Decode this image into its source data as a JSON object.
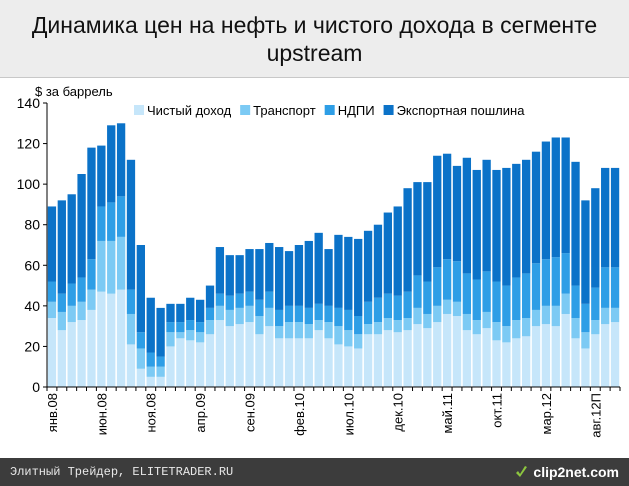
{
  "header": {
    "title": "Динамика цен на нефть и чистого дохода в сегменте upstream"
  },
  "footer": {
    "caption": "Элитный Трейдер, ELITETRADER.RU",
    "brand": "clip2net.com"
  },
  "colors": {
    "net_income": "#c6e6fa",
    "transport": "#7ccaf4",
    "mineral_tax": "#2e9ee6",
    "export_duty": "#0b72c8"
  },
  "chart_data": {
    "type": "bar",
    "stacked": true,
    "ylabel": "$ за баррель",
    "ylim": [
      0,
      140
    ],
    "yticks": [
      0,
      20,
      40,
      60,
      80,
      100,
      120,
      140
    ],
    "grid": false,
    "legend_position": "top",
    "tick_labels": [
      {
        "index": 0,
        "label": "янв.08"
      },
      {
        "index": 5,
        "label": "июн.08"
      },
      {
        "index": 10,
        "label": "ноя.08"
      },
      {
        "index": 15,
        "label": "апр.09"
      },
      {
        "index": 20,
        "label": "сен.09"
      },
      {
        "index": 25,
        "label": "фев.10"
      },
      {
        "index": 30,
        "label": "июл.10"
      },
      {
        "index": 35,
        "label": "дек.10"
      },
      {
        "index": 40,
        "label": "май.11"
      },
      {
        "index": 45,
        "label": "окт.11"
      },
      {
        "index": 50,
        "label": "мар.12"
      },
      {
        "index": 55,
        "label": "авг.12П"
      }
    ],
    "series": [
      {
        "name": "Чистый доход",
        "key": "net_income",
        "values": [
          34,
          28,
          32,
          33,
          38,
          47,
          46,
          48,
          21,
          9,
          5,
          5,
          20,
          24,
          23,
          22,
          26,
          33,
          30,
          31,
          32,
          26,
          30,
          24,
          24,
          24,
          24,
          28,
          24,
          21,
          20,
          19,
          26,
          26,
          28,
          27,
          28,
          31,
          29,
          32,
          36,
          35,
          28,
          26,
          29,
          23,
          22,
          24,
          25,
          30,
          31,
          30,
          36,
          24,
          19,
          26,
          31,
          32
        ]
      },
      {
        "name": "Транспорт",
        "key": "transport",
        "values": [
          8,
          9,
          8,
          9,
          10,
          25,
          26,
          26,
          15,
          10,
          5,
          5,
          7,
          3,
          5,
          5,
          7,
          7,
          8,
          8,
          8,
          9,
          9,
          6,
          8,
          8,
          7,
          5,
          8,
          9,
          8,
          7,
          5,
          6,
          6,
          6,
          6,
          8,
          7,
          8,
          7,
          7,
          8,
          7,
          8,
          9,
          8,
          9,
          9,
          8,
          9,
          10,
          10,
          10,
          8,
          7,
          8,
          7
        ]
      },
      {
        "name": "НДПИ",
        "key": "mineral_tax",
        "values": [
          10,
          9,
          11,
          12,
          15,
          17,
          19,
          20,
          12,
          8,
          7,
          5,
          5,
          5,
          5,
          5,
          6,
          6,
          7,
          7,
          7,
          8,
          8,
          8,
          8,
          8,
          8,
          8,
          8,
          9,
          10,
          9,
          11,
          12,
          12,
          12,
          13,
          16,
          16,
          19,
          20,
          20,
          20,
          20,
          20,
          20,
          20,
          21,
          22,
          23,
          23,
          24,
          20,
          16,
          14,
          16,
          20,
          20
        ]
      },
      {
        "name": "Экспортная пошлина",
        "key": "export_duty",
        "values": [
          37,
          46,
          44,
          51,
          55,
          30,
          38,
          36,
          64,
          43,
          27,
          24,
          9,
          9,
          11,
          11,
          11,
          23,
          20,
          19,
          21,
          25,
          24,
          31,
          27,
          30,
          33,
          35,
          28,
          36,
          36,
          38,
          35,
          36,
          40,
          44,
          51,
          46,
          49,
          55,
          52,
          47,
          57,
          54,
          55,
          55,
          58,
          56,
          56,
          55,
          58,
          59,
          57,
          61,
          51,
          49,
          49,
          49
        ]
      }
    ]
  }
}
